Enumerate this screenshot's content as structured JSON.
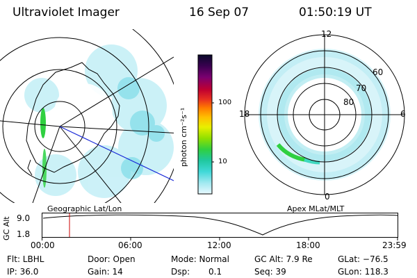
{
  "header": {
    "instrument": "Ultraviolet Imager",
    "date": "16 Sep 07",
    "time": "01:50:19 UT"
  },
  "colorbar": {
    "label": "photon cm⁻²s⁻¹",
    "ticks": [
      "100",
      "10"
    ],
    "colors": [
      "#0a0a2a",
      "#3a0050",
      "#7a0070",
      "#c00030",
      "#e83020",
      "#ff7a00",
      "#ffc000",
      "#e8f000",
      "#90e000",
      "#30d040",
      "#20c8a0",
      "#40d8d8",
      "#a0e8f0",
      "#e8f8ff"
    ]
  },
  "left_map": {
    "caption": "Geographic Lat/Lon"
  },
  "right_map": {
    "caption": "Apex MLat/MLT",
    "lat_labels": [
      "80",
      "70",
      "60"
    ],
    "mlt_labels": [
      "12",
      "18",
      "6",
      "0"
    ]
  },
  "altitude_plot": {
    "ylabel": "GC Alt",
    "yticks": [
      "9.0",
      "1.8"
    ],
    "xticks": [
      "00:00",
      "06:00",
      "12:00",
      "18:00",
      "23:59"
    ],
    "marker_color": "#cc0000"
  },
  "info": {
    "filter": "Flt: LBHL",
    "door": "Door: Open",
    "mode": "Mode: Normal",
    "gc_alt": "GC Alt: 7.9 Re",
    "glat": "GLat: −76.5",
    "ip": "IP: 36.0",
    "gain": "Gain: 14",
    "dsp_label": "Dsp:",
    "dsp_value": "0.1",
    "seq": "Seq: 39",
    "glon": "GLon: 118.3"
  }
}
